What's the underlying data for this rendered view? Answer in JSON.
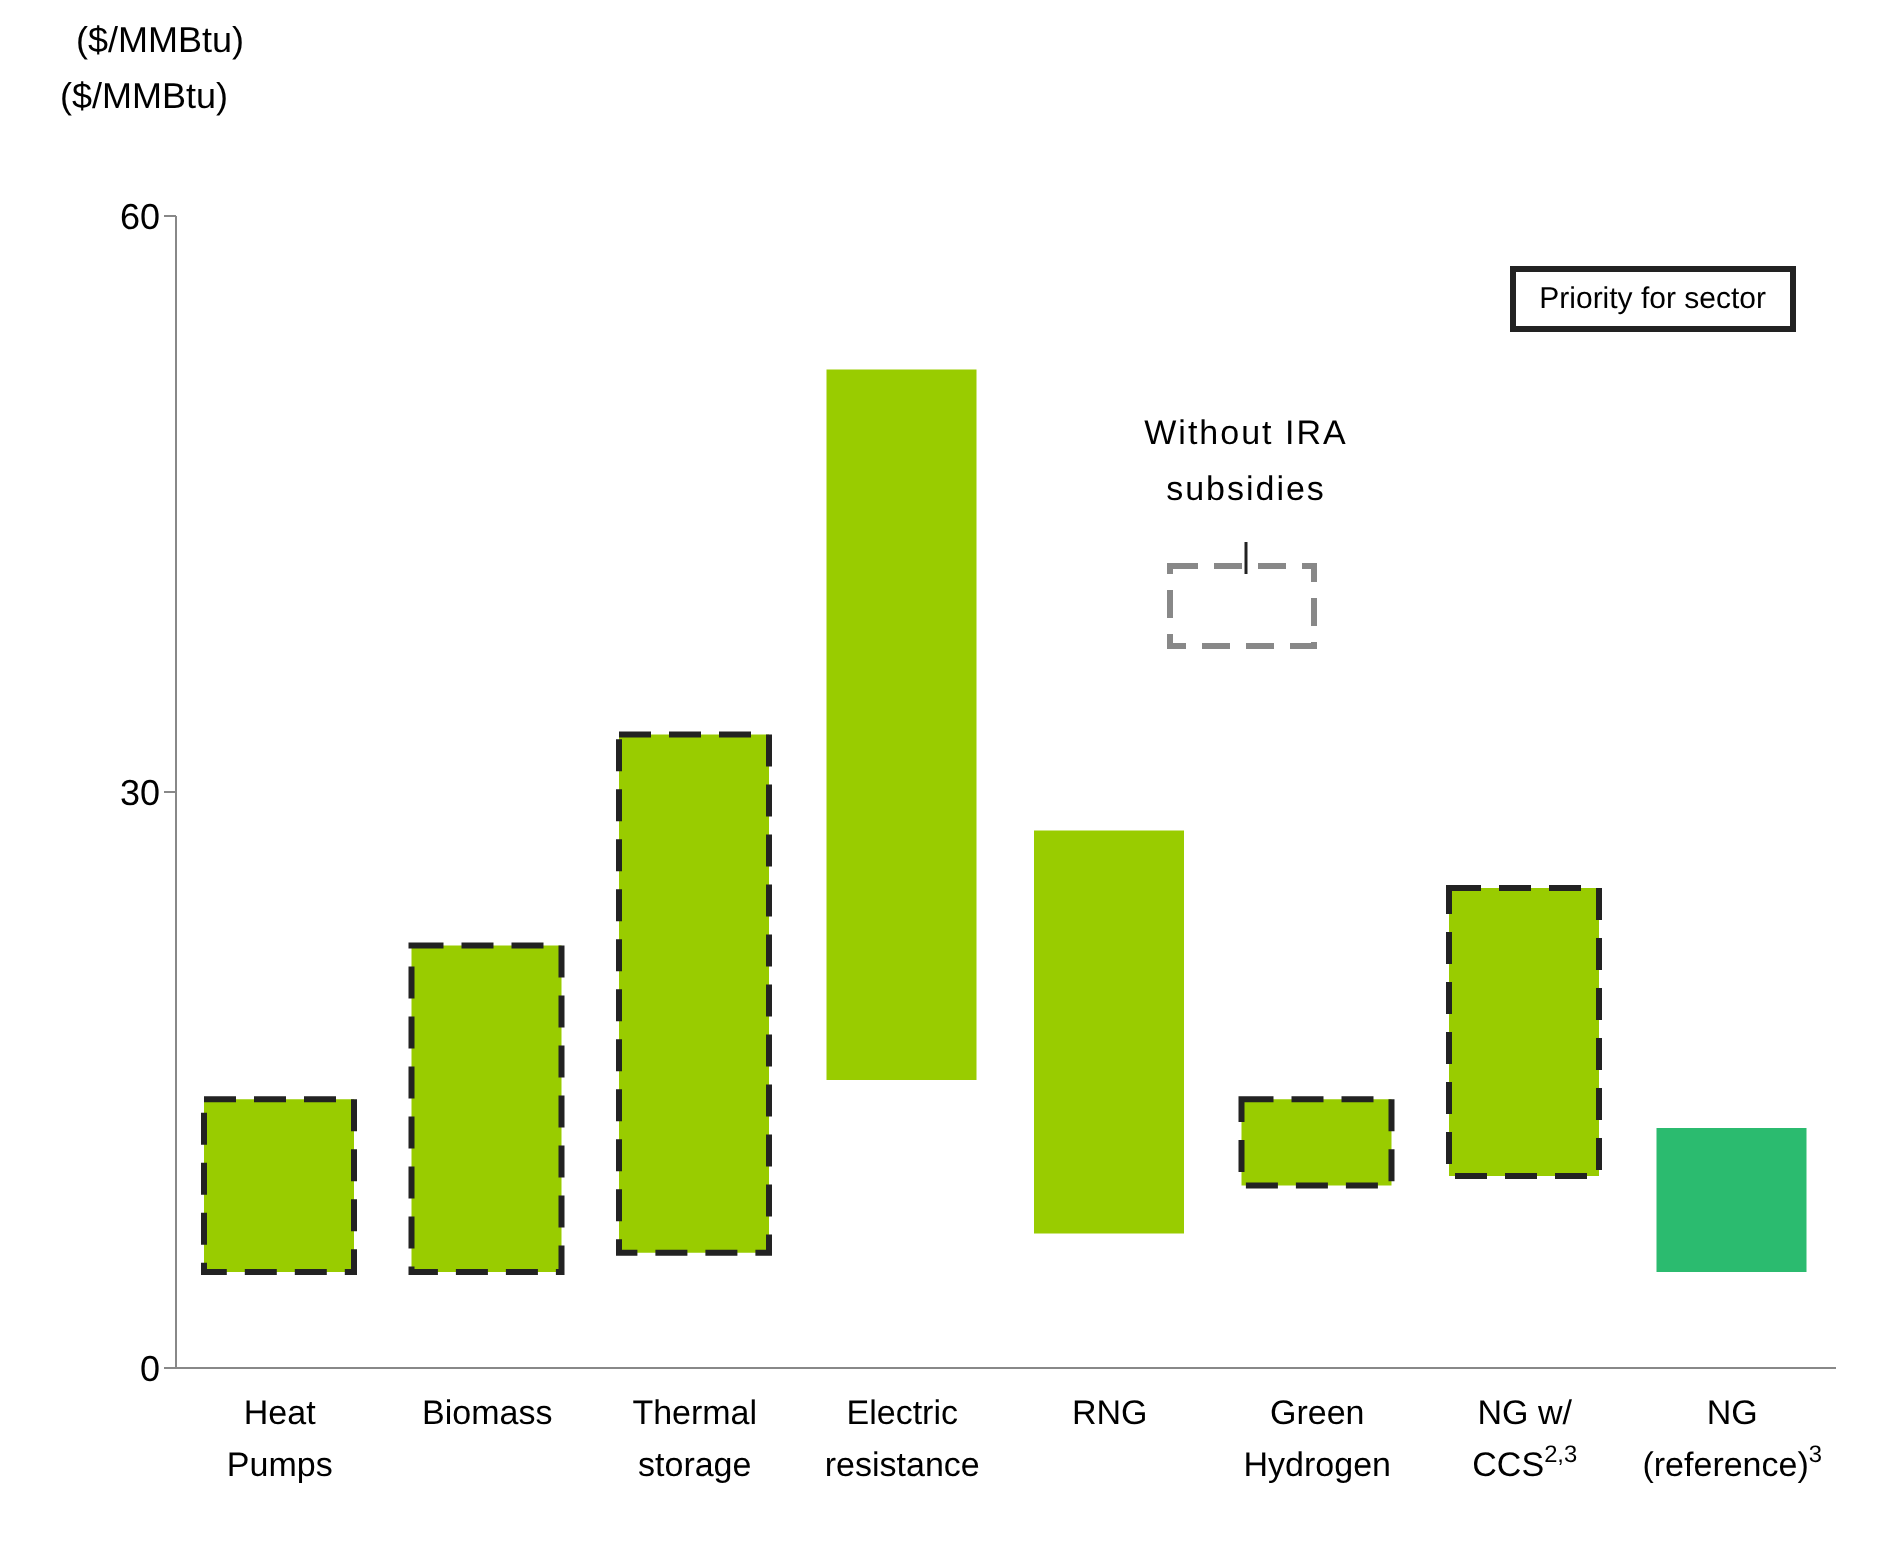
{
  "chart_data": {
    "type": "bar",
    "title": "($/MMBtu)",
    "ylabel": "($/MMBtu)",
    "categories": [
      "Heat Pumps",
      "Biomass",
      "Thermal storage",
      "Electric resistance",
      "RNG",
      "Green Hydrogen",
      "NG w/ CCS$^{2,3}$",
      "NG (reference)$^{3}$"
    ],
    "series": [
      {
        "colors": [
          "#99cc00",
          "#99cc00",
          "#99cc00",
          "#99cc00",
          "#99cc00",
          "#99cc00",
          "#99cc00",
          "#2bbb6f"
        ],
        "base": [
          null,
          null,
          null,
          15,
          7,
          null,
          null,
          5
        ],
        "values": [
          null,
          null,
          null,
          37,
          21,
          null,
          null,
          7.5
        ]
      },
      {
        "color": "#99cc00",
        "line_style": "dashed",
        "base": [
          5,
          5,
          6,
          null,
          null,
          9.5,
          10,
          null
        ],
        "values": [
          9,
          17,
          27,
          null,
          null,
          4.5,
          15,
          null
        ]
      }
    ],
    "ylim": [
      0,
      60
    ],
    "yticks": [
      0,
      30,
      60
    ],
    "grid": false,
    "annotations": [
      "Priority for sector",
      "Without IRA subsidies"
    ]
  }
}
